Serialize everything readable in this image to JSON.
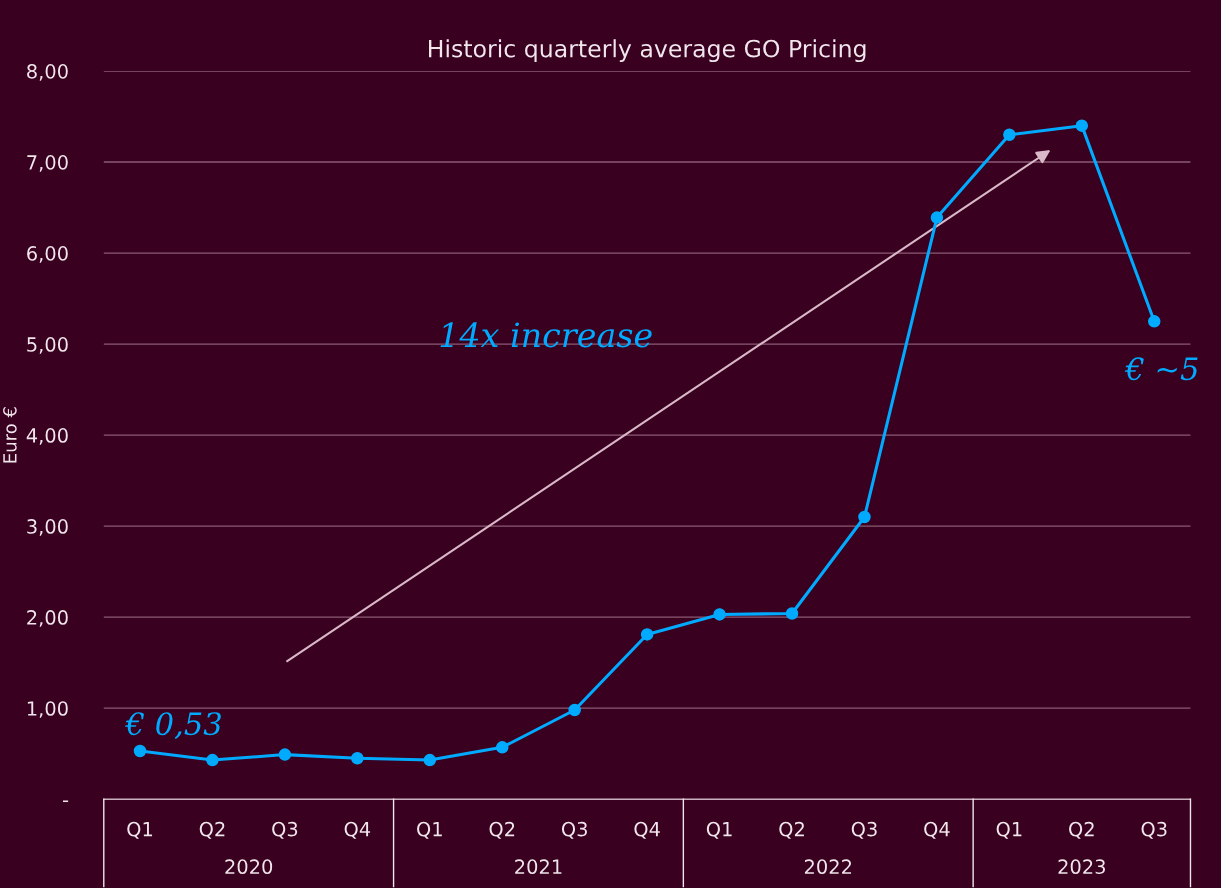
{
  "chart_data": {
    "type": "line",
    "title": "Historic quarterly average GO Pricing",
    "ylabel": "Euro €",
    "categories": [
      "Q1",
      "Q2",
      "Q3",
      "Q4",
      "Q1",
      "Q2",
      "Q3",
      "Q4",
      "Q1",
      "Q2",
      "Q3",
      "Q4",
      "Q1",
      "Q2",
      "Q3"
    ],
    "series": [
      {
        "color": "#00aaff",
        "values": [
          0.53,
          0.43,
          0.49,
          0.45,
          0.43,
          0.57,
          0.98,
          1.81,
          2.03,
          2.04,
          3.1,
          6.39,
          7.3,
          7.4,
          5.25
        ]
      }
    ],
    "ylim": [
      0,
      8
    ],
    "yticks": [
      {
        "value": 0,
        "label": "-"
      },
      {
        "value": 1,
        "label": "1,00"
      },
      {
        "value": 2,
        "label": "2,00"
      },
      {
        "value": 3,
        "label": "3,00"
      },
      {
        "value": 4,
        "label": "4,00"
      },
      {
        "value": 5,
        "label": "5,00"
      },
      {
        "value": 6,
        "label": "6,00"
      },
      {
        "value": 7,
        "label": "7,00"
      },
      {
        "value": 8,
        "label": "8,00"
      }
    ],
    "annotations": [
      "2020",
      "2021",
      "2022",
      "2023",
      "14x increase",
      "€ 0,53",
      "€ ~5"
    ],
    "grid": "y",
    "legend": false,
    "marker": "circle",
    "line_style": "solid"
  }
}
